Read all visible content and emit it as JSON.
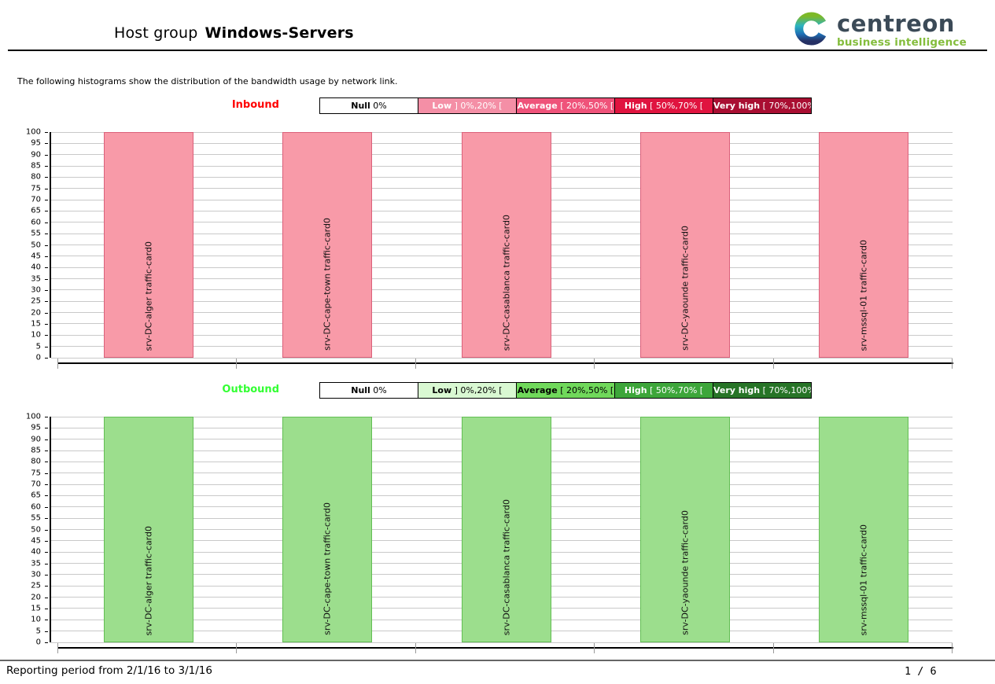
{
  "page": {
    "title_prefix": "Host group",
    "title_bold": "Windows-Servers",
    "description": "The following histograms show the distribution of the bandwidth usage by network link.",
    "logo": {
      "brand": "centreon",
      "tagline": "business intelligence"
    },
    "footer": {
      "reporting_period": "Reporting period from 2/1/16 to 3/1/16",
      "page_number": "1 / 6"
    }
  },
  "chart_data": [
    {
      "type": "bar",
      "title": "Inbound",
      "title_color": "#ff0000",
      "categories": [
        "srv-DC-alger traffic-card0",
        "srv-DC-cape-town traffic-card0",
        "srv-DC-casablanca traffic-card0",
        "srv-DC-yaounde traffic-card0",
        "srv-mssql-01 traffic-card0"
      ],
      "values": [
        100,
        100,
        100,
        100,
        100
      ],
      "ylim": [
        0,
        100
      ],
      "ytick_step": 5,
      "grid": true,
      "bar_fill": "#f89aa8",
      "bar_border": "#db607a",
      "legend": [
        {
          "name": "Null",
          "range": "0%",
          "bg": "#ffffff",
          "fg": "#000000"
        },
        {
          "name": "Low",
          "range": "] 0%,20% [",
          "bg": "#f48fa6",
          "fg": "#ffffff"
        },
        {
          "name": "Average",
          "range": "[ 20%,50% [",
          "bg": "#ef537a",
          "fg": "#ffffff"
        },
        {
          "name": "High",
          "range": "[ 50%,70% [",
          "bg": "#e0143f",
          "fg": "#ffffff"
        },
        {
          "name": "Very high",
          "range": "[ 70%,100% ]",
          "bg": "#a90e32",
          "fg": "#ffffff"
        }
      ]
    },
    {
      "type": "bar",
      "title": "Outbound",
      "title_color": "#33ff33",
      "categories": [
        "srv-DC-alger traffic-card0",
        "srv-DC-cape-town traffic-card0",
        "srv-DC-casablanca traffic-card0",
        "srv-DC-yaounde traffic-card0",
        "srv-mssql-01 traffic-card0"
      ],
      "values": [
        100,
        100,
        100,
        100,
        100
      ],
      "ylim": [
        0,
        100
      ],
      "ytick_step": 5,
      "grid": true,
      "bar_fill": "#9cde8d",
      "bar_border": "#62be53",
      "legend": [
        {
          "name": "Null",
          "range": "0%",
          "bg": "#ffffff",
          "fg": "#000000"
        },
        {
          "name": "Low",
          "range": "] 0%,20% [",
          "bg": "#d9f8d2",
          "fg": "#000000"
        },
        {
          "name": "Average",
          "range": "[ 20%,50% [",
          "bg": "#70d95b",
          "fg": "#000000"
        },
        {
          "name": "High",
          "range": "[ 50%,70% [",
          "bg": "#3da63a",
          "fg": "#ffffff"
        },
        {
          "name": "Very high",
          "range": "[ 70%,100% ]",
          "bg": "#277427",
          "fg": "#ffffff"
        }
      ]
    }
  ]
}
